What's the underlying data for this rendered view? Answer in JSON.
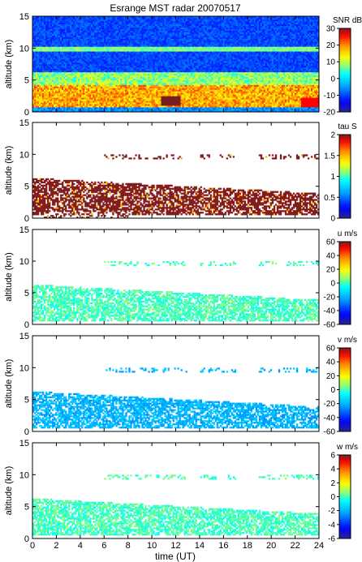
{
  "chart_data": {
    "type": "heatmap",
    "title": "Esrange MST radar 20070517",
    "xlabel": "time (UT)",
    "xlim": [
      0,
      24
    ],
    "xticks": [
      0,
      2,
      4,
      6,
      8,
      10,
      12,
      14,
      16,
      18,
      20,
      22,
      24
    ],
    "panels": [
      {
        "id": "snr",
        "ylabel": "altitude (km)",
        "ylim": [
          0,
          15
        ],
        "yticks": [
          0,
          5,
          10,
          15
        ],
        "colorbar": {
          "label": "SNR dB",
          "range": [
            -20,
            30
          ],
          "ticks": [
            -20,
            -10,
            0,
            10,
            20,
            30
          ]
        },
        "fields": {
          "background": -10,
          "layer_10km": 10,
          "lower_layer": 10,
          "core_1_3km": 22,
          "peak": 30
        }
      },
      {
        "id": "tau",
        "ylabel": "altitude (km)",
        "ylim": [
          0,
          15
        ],
        "yticks": [
          0,
          5,
          10,
          15
        ],
        "colorbar": {
          "label": "tau S",
          "range": [
            0,
            2
          ],
          "ticks": [
            0,
            0.5,
            1,
            1.5,
            2
          ]
        },
        "fields": {
          "typical": 2
        }
      },
      {
        "id": "u",
        "ylabel": "altitude (km)",
        "ylim": [
          0,
          15
        ],
        "yticks": [
          0,
          5,
          10,
          15
        ],
        "colorbar": {
          "label": "u m/s",
          "range": [
            -60,
            60
          ],
          "ticks": [
            -60,
            -40,
            -20,
            0,
            20,
            40,
            60
          ]
        },
        "fields": {
          "typical": 0
        }
      },
      {
        "id": "v",
        "ylabel": "altitude (km)",
        "ylim": [
          0,
          15
        ],
        "yticks": [
          0,
          5,
          10,
          15
        ],
        "colorbar": {
          "label": "v m/s",
          "range": [
            -60,
            60
          ],
          "ticks": [
            -60,
            -40,
            -20,
            0,
            20,
            40,
            60
          ]
        },
        "fields": {
          "typical": -20
        }
      },
      {
        "id": "w",
        "ylabel": "altitude (km)",
        "ylim": [
          0,
          15
        ],
        "yticks": [
          0,
          5,
          10,
          15
        ],
        "colorbar": {
          "label": "w m/s",
          "range": [
            -6,
            6
          ],
          "ticks": [
            -6,
            -4,
            -2,
            0,
            2,
            4,
            6
          ]
        },
        "fields": {
          "typical": 0
        }
      }
    ]
  }
}
